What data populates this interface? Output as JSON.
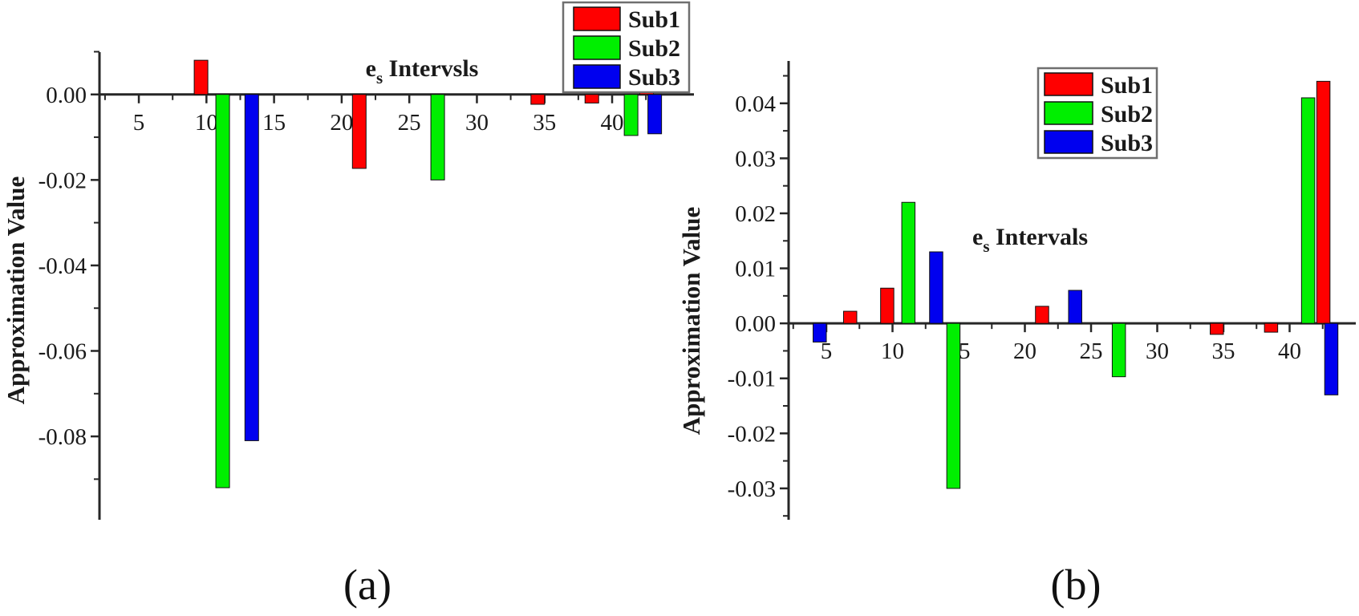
{
  "figure": {
    "background": "#ffffff",
    "captions": {
      "a": "(a)",
      "b": "(b)"
    }
  },
  "chart_data": [
    {
      "type": "bar",
      "panel": "a",
      "title": {
        "prefix": "e",
        "sub": "s",
        "rest": " Intervsls"
      },
      "ylabel": "Approximation Value",
      "legend": {
        "position": "top-right",
        "entries": [
          "Sub1",
          "Sub2",
          "Sub3"
        ]
      },
      "series_colors": {
        "Sub1": "#ff0000",
        "Sub2": "#00ef00",
        "Sub3": "#0000ef"
      },
      "xlim": [
        2.09,
        46.05
      ],
      "ylim": [
        -0.0995,
        0.0099
      ],
      "grid": false,
      "xticks": {
        "major": [
          5,
          10,
          15,
          20,
          25,
          30,
          35,
          40
        ],
        "labels": [
          "5",
          "10",
          "15",
          "20",
          "25",
          "30",
          "35",
          "40"
        ],
        "minor": [
          2.5,
          7.5,
          12.5,
          17.5,
          22.5,
          27.5,
          32.5,
          37.5,
          42.5
        ]
      },
      "yticks": {
        "major": [
          0,
          -0.02,
          -0.04,
          -0.06,
          -0.08
        ],
        "labels": [
          "0.00",
          "-0.02",
          "-0.04",
          "-0.06",
          "-0.08"
        ],
        "minor": [
          0.01,
          -0.01,
          -0.03,
          -0.05,
          -0.07,
          -0.09
        ]
      },
      "bars": [
        {
          "x": 9.6,
          "series": "Sub1",
          "value": 0.008
        },
        {
          "x": 11.2,
          "series": "Sub2",
          "value": -0.092
        },
        {
          "x": 13.35,
          "series": "Sub3",
          "value": -0.081
        },
        {
          "x": 21.3,
          "series": "Sub1",
          "value": -0.0173
        },
        {
          "x": 27.1,
          "series": "Sub2",
          "value": -0.02
        },
        {
          "x": 34.5,
          "series": "Sub1",
          "value": -0.0023
        },
        {
          "x": 38.5,
          "series": "Sub1",
          "value": -0.002
        },
        {
          "x": 41.4,
          "series": "Sub2",
          "value": -0.0096
        },
        {
          "x": 42.55,
          "series": "Sub1",
          "value": 0.001
        },
        {
          "x": 43.15,
          "series": "Sub3",
          "value": -0.0092
        }
      ]
    },
    {
      "type": "bar",
      "panel": "b",
      "title": {
        "prefix": "e",
        "sub": "s",
        "rest": " Intervals"
      },
      "ylabel": "Approximation Value",
      "legend": {
        "position": "top-right",
        "entries": [
          "Sub1",
          "Sub2",
          "Sub3"
        ]
      },
      "series_colors": {
        "Sub1": "#ff0000",
        "Sub2": "#00ef00",
        "Sub3": "#0000ef"
      },
      "xlim": [
        2.15,
        45.0
      ],
      "ylim": [
        -0.0357,
        0.0477
      ],
      "grid": false,
      "xticks": {
        "major": [
          5,
          10,
          15,
          20,
          25,
          30,
          35,
          40
        ],
        "labels": [
          "5",
          "10",
          "15",
          "20",
          "25",
          "30",
          "35",
          "40"
        ],
        "minor": [
          2.5,
          7.5,
          12.5,
          17.5,
          22.5,
          27.5,
          32.5,
          37.5,
          42.5
        ]
      },
      "yticks": {
        "major": [
          0.04,
          0.03,
          0.02,
          0.01,
          0,
          -0.01,
          -0.02,
          -0.03
        ],
        "labels": [
          "0.04",
          "0.03",
          "0.02",
          "0.01",
          "0.00",
          "-0.01",
          "-0.02",
          "-0.03"
        ],
        "minor": [
          0.045,
          0.035,
          0.025,
          0.015,
          0.005,
          -0.005,
          -0.015,
          -0.025,
          -0.035
        ]
      },
      "bars": [
        {
          "x": 4.5,
          "series": "Sub3",
          "value": -0.0034
        },
        {
          "x": 6.8,
          "series": "Sub1",
          "value": 0.0022
        },
        {
          "x": 9.6,
          "series": "Sub1",
          "value": 0.0064
        },
        {
          "x": 11.2,
          "series": "Sub2",
          "value": 0.022
        },
        {
          "x": 13.3,
          "series": "Sub3",
          "value": 0.013
        },
        {
          "x": 14.6,
          "series": "Sub2",
          "value": -0.03
        },
        {
          "x": 21.3,
          "series": "Sub1",
          "value": 0.0031
        },
        {
          "x": 23.8,
          "series": "Sub3",
          "value": 0.006
        },
        {
          "x": 27.1,
          "series": "Sub2",
          "value": -0.0097
        },
        {
          "x": 34.5,
          "series": "Sub1",
          "value": -0.002
        },
        {
          "x": 38.6,
          "series": "Sub1",
          "value": -0.0016
        },
        {
          "x": 41.4,
          "series": "Sub2",
          "value": 0.041
        },
        {
          "x": 42.55,
          "series": "Sub1",
          "value": 0.044
        },
        {
          "x": 43.15,
          "series": "Sub3",
          "value": -0.013
        }
      ]
    }
  ]
}
